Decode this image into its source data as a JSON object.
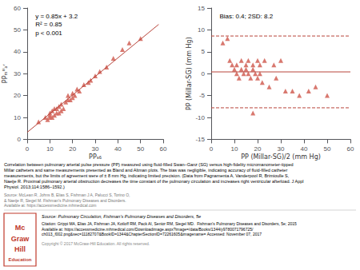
{
  "chart_data": [
    {
      "type": "scatter",
      "xlabel": "PPₛ₆",
      "ylabel": "PPₘᴵˡˡₐʳ",
      "annotation": "y = 0.85x + 3.2\nR² = 0.85\np < 0.001",
      "xlim": [
        0,
        60
      ],
      "ylim": [
        0,
        60
      ],
      "xticks": [
        0,
        10,
        20,
        30,
        40,
        50,
        60
      ],
      "yticks": [
        0,
        10,
        20,
        30,
        40,
        50,
        60
      ],
      "grid": false,
      "series": [
        {
          "type": "scatter",
          "marker": "triangle",
          "color": "#d4695f",
          "x": [
            5,
            8,
            9,
            10,
            10,
            10,
            11,
            11,
            12,
            12,
            13,
            13,
            14,
            14,
            15,
            15,
            16,
            17,
            18,
            18,
            19,
            20,
            20,
            21,
            22,
            23,
            25,
            27,
            28,
            30,
            32,
            35,
            38,
            42,
            45,
            50
          ],
          "values": [
            8,
            10,
            9,
            10,
            11,
            12,
            10,
            13,
            11,
            14,
            12,
            14,
            12,
            15,
            13,
            16,
            14,
            17,
            18,
            20,
            18,
            19,
            21,
            20,
            23,
            22,
            25,
            26,
            27,
            29,
            31,
            33,
            37,
            41,
            44,
            46
          ]
        },
        {
          "type": "line",
          "line_style": "solid",
          "color": "#b8443a",
          "x": [
            0,
            58
          ],
          "values": [
            3.2,
            52.5
          ]
        }
      ]
    },
    {
      "type": "scatter",
      "xlabel": "PP (Millar-SG)/2 (mm Hg)",
      "ylabel": "PP (Millar-SG) (mm Hg)",
      "annotation": "Bias: 0.4; 2SD: 8.2",
      "xlim": [
        0,
        60
      ],
      "ylim": [
        -15,
        15
      ],
      "xticks": [
        0,
        10,
        20,
        30,
        40,
        50,
        60
      ],
      "yticks": [
        -15,
        -10,
        -5,
        0,
        5,
        10,
        15
      ],
      "grid": false,
      "series": [
        {
          "type": "scatter",
          "marker": "triangle",
          "color": "#d4695f",
          "x": [
            5,
            7,
            8,
            9,
            10,
            11,
            11,
            12,
            13,
            13,
            14,
            15,
            15,
            16,
            16,
            17,
            18,
            18,
            19,
            20,
            20,
            21,
            21,
            22,
            23,
            25,
            27,
            28,
            30,
            32,
            35,
            38,
            42,
            45,
            50,
            18
          ],
          "values": [
            7,
            8,
            3,
            2,
            1,
            0,
            2,
            -1,
            1,
            3,
            0,
            2,
            1,
            0,
            3,
            -1,
            2,
            1,
            0,
            3,
            -1,
            0,
            2,
            -2,
            3,
            -3,
            2,
            -1,
            3,
            -4,
            -4,
            -5,
            -4,
            -3,
            -5,
            -9
          ]
        },
        {
          "type": "line",
          "line_style": "solid",
          "color": "#b8443a",
          "x": [
            0,
            60
          ],
          "values": [
            0.4,
            0.4
          ]
        },
        {
          "type": "line",
          "line_style": "dashed",
          "color": "#b8443a",
          "x": [
            0,
            60
          ],
          "values": [
            8.6,
            8.6
          ]
        },
        {
          "type": "line",
          "line_style": "dashed",
          "color": "#b8443a",
          "x": [
            0,
            60
          ],
          "values": [
            -7.8,
            -7.8
          ]
        }
      ]
    }
  ],
  "caption": "Correlation between pulmonary arterial pulse pressure (PP) measured using fluid-filled Swan–Ganz (SG) versus high-fidelity micromanometer-tipped\nMillar catheters and same measurements presented as Bland and Altman plots. The bias was negligible, indicating accuracy of fluid-filled catheter\nmeasurements, but the limits of agreement were of ± 8 mm Hg, indicating limited precision. (Data from Pagnamenta A, Vanderpool R, Brimioulle S,\nNaeije R. Proximal pulmonary arterial obstruction decreases the time constant of the pulmonary circulation and increases right ventricular afterload. J Appl\nPhysiol. 2013;114:1586–1592.)",
  "small_source": "Source: McLean R, Johns B, Elias S, Fishman J A, Palucci S, Torino O,\n& Naeije R, Siegel M. Fishman's Pulmonary Diseases and Disorders.\nAvailable at: https://accessmedicine.mhmedical.com",
  "source_line": "Source: Pulmonary Circulation, Fishman's Pulmonary Diseases and Disorders, 5e",
  "citation_line": "Citation: Grippi MA, Elias JA, Fishman JA, Kotloff RM, Pack AI, Senior RM, Siegel MD.  Fishman's Pulmonary Diseases and Disorders, 5e; 2015\nAvailable at: https://accessmedicine.mhmedical.com/Downloadimage.aspx?image=/data/Books/1344/y9780071796725/\nch013_f002.png&sec=11182707&BookID=1344&ChapterSectionID=72261605&imagename= Accessed: November 07, 2017",
  "copyright_line": "Copyright © 2017 McGraw-Hill Education. All rights reserved.",
  "logo_texts": [
    "Mc",
    "Graw",
    "Hill",
    "Education"
  ],
  "logo_color": "#c0392b"
}
